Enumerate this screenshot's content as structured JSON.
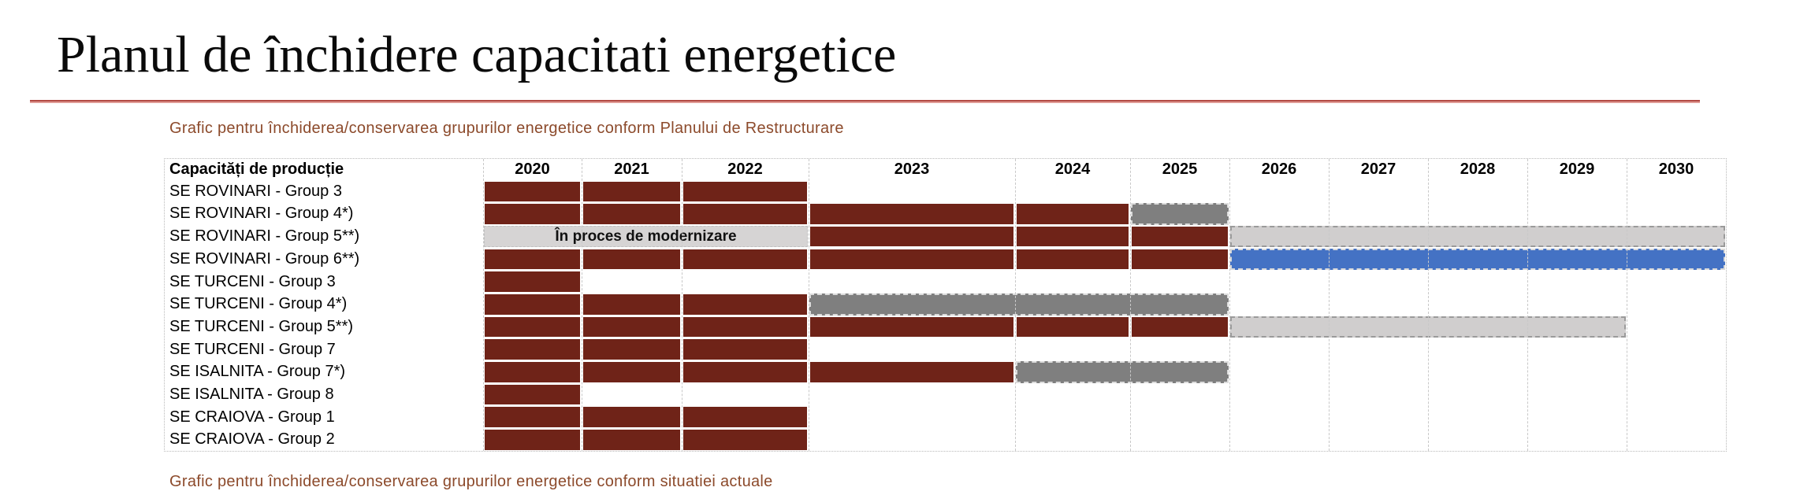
{
  "page": {
    "title": "Planul de închidere capacitati energetice",
    "subtitle": "Grafic pentru închiderea/conservarea grupurilor energetice conform Planului de Restructurare",
    "bottom_note": "Grafic pentru închiderea/conservarea grupurilor energetice conform situatiei actuale"
  },
  "colors": {
    "bar_closed": "#6F2318",
    "bar_conservation": "#7F7F7F",
    "bar_planned": "#D0CECE",
    "bar_extension": "#4472C4",
    "bar_modernization": "#D6D4D4",
    "title_underline": "#B34A44",
    "subtitle_text": "#8C4A2B"
  },
  "chart_data": {
    "type": "gantt",
    "corner_header": "Capacități de producție",
    "years": [
      "2020",
      "2021",
      "2022",
      "2023",
      "2024",
      "2025",
      "2026",
      "2027",
      "2028",
      "2029",
      "2030"
    ],
    "rows": [
      {
        "label": "SE ROVINARI - Group 3",
        "segments": [
          {
            "from": "2020",
            "to": "2022",
            "style": "closed"
          }
        ]
      },
      {
        "label": "SE ROVINARI - Group 4*)",
        "segments": [
          {
            "from": "2020",
            "to": "2024",
            "style": "closed"
          },
          {
            "from": "2025",
            "to": "2025",
            "style": "conservation"
          }
        ]
      },
      {
        "label": "SE ROVINARI - Group 5**)",
        "segments": [
          {
            "from": "2020",
            "to": "2022",
            "style": "modernization",
            "text": "În proces de modernizare"
          },
          {
            "from": "2023",
            "to": "2025",
            "style": "closed"
          },
          {
            "from": "2026",
            "to": "2030",
            "style": "planned"
          }
        ]
      },
      {
        "label": "SE ROVINARI - Group 6**)",
        "segments": [
          {
            "from": "2020",
            "to": "2025",
            "style": "closed"
          },
          {
            "from": "2026",
            "to": "2030",
            "style": "extension"
          }
        ]
      },
      {
        "label": "SE TURCENI - Group 3",
        "segments": [
          {
            "from": "2020",
            "to": "2020",
            "style": "closed"
          }
        ]
      },
      {
        "label": "SE TURCENI - Group 4*)",
        "segments": [
          {
            "from": "2020",
            "to": "2022",
            "style": "closed"
          },
          {
            "from": "2023",
            "to": "2025",
            "style": "conservation"
          }
        ]
      },
      {
        "label": "SE TURCENI - Group 5**)",
        "segments": [
          {
            "from": "2020",
            "to": "2025",
            "style": "closed"
          },
          {
            "from": "2026",
            "to": "2029",
            "style": "planned"
          }
        ]
      },
      {
        "label": "SE TURCENI - Group 7",
        "segments": [
          {
            "from": "2020",
            "to": "2022",
            "style": "closed"
          }
        ]
      },
      {
        "label": "SE ISALNITA - Group 7*)",
        "segments": [
          {
            "from": "2020",
            "to": "2023",
            "style": "closed"
          },
          {
            "from": "2024",
            "to": "2025",
            "style": "conservation"
          }
        ]
      },
      {
        "label": "SE ISALNITA - Group 8",
        "segments": [
          {
            "from": "2020",
            "to": "2020",
            "style": "closed"
          }
        ]
      },
      {
        "label": "SE CRAIOVA - Group 1",
        "segments": [
          {
            "from": "2020",
            "to": "2022",
            "style": "closed"
          }
        ]
      },
      {
        "label": "SE CRAIOVA - Group 2",
        "segments": [
          {
            "from": "2020",
            "to": "2022",
            "style": "closed"
          }
        ]
      }
    ]
  }
}
